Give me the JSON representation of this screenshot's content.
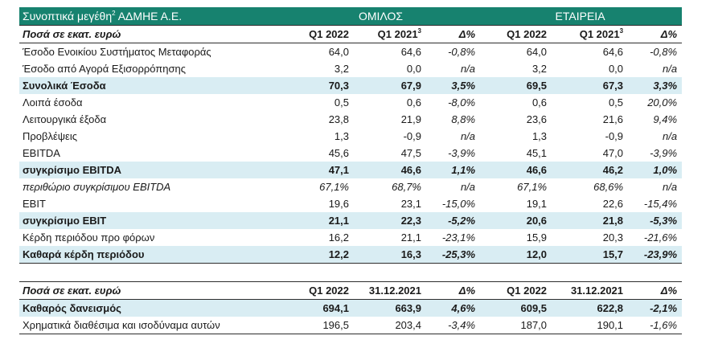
{
  "title": {
    "text": "Συνοπτικά μεγέθη",
    "superscript": "2",
    "suffix": " ΑΔΜΗΕ Α.Ε.",
    "group_label": "ΟΜΙΛΟΣ",
    "company_label": "ΕΤΑΙΡΕΙΑ"
  },
  "table1": {
    "header": {
      "label": "Ποσά σε εκατ. ευρώ",
      "cols": [
        "Q1 2022",
        "Q1 2021",
        "Δ%",
        "Q1 2022",
        "Q1 2021",
        "Δ%"
      ],
      "col2_sup": "3",
      "col5_sup": "3"
    },
    "rows": [
      {
        "label": "Έσοδο Ενοικίου Συστήματος Μεταφοράς",
        "values": [
          "64,0",
          "64,6",
          "-0,8%",
          "64,0",
          "64,6",
          "-0,8%"
        ]
      },
      {
        "label": "Έσοδο από Αγορά Εξισορρόπησης",
        "values": [
          "3,2",
          "0,0",
          "n/a",
          "3,2",
          "0,0",
          "n/a"
        ]
      },
      {
        "label": "Συνολικά Έσοδα",
        "values": [
          "70,3",
          "67,9",
          "3,5%",
          "69,5",
          "67,3",
          "3,3%"
        ],
        "highlight": true
      },
      {
        "label": "Λοιπά έσοδα",
        "values": [
          "0,5",
          "0,6",
          "-8,0%",
          "0,6",
          "0,5",
          "20,0%"
        ]
      },
      {
        "label": "Λειτουργικά έξοδα",
        "values": [
          "23,8",
          "21,9",
          "8,8%",
          "23,6",
          "21,6",
          "9,4%"
        ]
      },
      {
        "label": "Προβλέψεις",
        "values": [
          "1,3",
          "-0,9",
          "n/a",
          "1,3",
          "-0,9",
          "n/a"
        ]
      },
      {
        "label": "EBITDA",
        "values": [
          "45,6",
          "47,5",
          "-3,9%",
          "45,1",
          "47,0",
          "-3,9%"
        ]
      },
      {
        "label": "συγκρίσιμο EBITDA",
        "values": [
          "47,1",
          "46,6",
          "1,1%",
          "46,6",
          "46,2",
          "1,0%"
        ],
        "highlight": true
      },
      {
        "label": "περιθώριο συγκρίσιμου EBITDA",
        "values": [
          "67,1%",
          "68,7%",
          "n/a",
          "67,1%",
          "68,6%",
          "n/a"
        ],
        "italic": true
      },
      {
        "label": "EBIT",
        "values": [
          "19,6",
          "23,1",
          "-15,0%",
          "19,1",
          "22,6",
          "-15,4%"
        ]
      },
      {
        "label": "συγκρίσιμο EBIT",
        "values": [
          "21,1",
          "22,3",
          "-5,2%",
          "20,6",
          "21,8",
          "-5,3%"
        ],
        "highlight": true
      },
      {
        "label": "Κέρδη περιόδου προ φόρων",
        "values": [
          "16,2",
          "21,1",
          "-23,1%",
          "15,9",
          "20,3",
          "-21,6%"
        ]
      },
      {
        "label": "Καθαρά κέρδη περιόδου",
        "values": [
          "12,2",
          "16,3",
          "-25,3%",
          "12,0",
          "15,7",
          "-23,9%"
        ],
        "highlight": true
      }
    ]
  },
  "table2": {
    "header": {
      "label": "Ποσά σε εκατ. ευρώ",
      "cols": [
        "Q1 2022",
        "31.12.2021",
        "Δ%",
        "Q1 2022",
        "31.12.2021",
        "Δ%"
      ]
    },
    "rows": [
      {
        "label": "Καθαρός δανεισμός",
        "values": [
          "694,1",
          "663,9",
          "4,6%",
          "609,5",
          "622,8",
          "-2,1%"
        ],
        "highlight": true
      },
      {
        "label": "Χρηματικά διαθέσιμα και ισοδύναμα αυτών",
        "values": [
          "196,5",
          "203,4",
          "-3,4%",
          "187,0",
          "190,1",
          "-1,6%"
        ]
      }
    ]
  }
}
